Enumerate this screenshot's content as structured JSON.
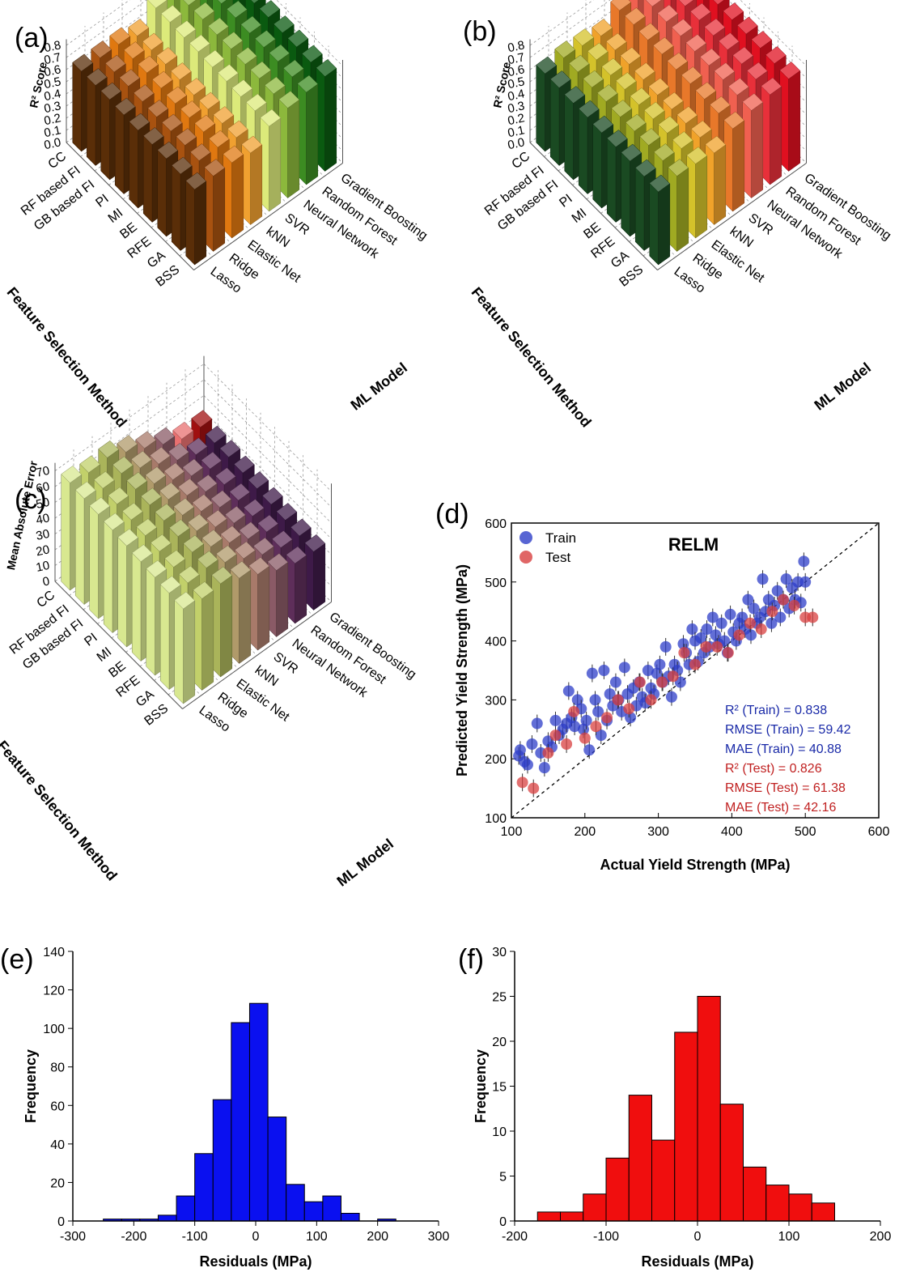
{
  "chart_data": [
    {
      "id": "a",
      "panel_label": "(a)",
      "type": "bar3d",
      "zlabel": "R² Score",
      "xlabel": "Feature Selection Method",
      "ylabel": "ML Model",
      "zticks": [
        "0.0",
        "0.1",
        "0.2",
        "0.3",
        "0.4",
        "0.5",
        "0.6",
        "0.7",
        "0.8"
      ],
      "zlim": [
        0,
        0.85
      ],
      "feature_methods": [
        "CC",
        "RF based FI",
        "GB based FI",
        "PI",
        "MI",
        "BE",
        "RFE",
        "GA",
        "BSS"
      ],
      "ml_models": [
        "Lasso",
        "Ridge",
        "Elastic Net",
        "kNN",
        "SVR",
        "Neural Network",
        "Random Forest",
        "Gradient Boosting"
      ],
      "series_colors": [
        "#5a2e08",
        "#a85210",
        "#e07810",
        "#f0a030",
        "#dcea7a",
        "#8cb83c",
        "#3c8c22",
        "#0a5a10"
      ],
      "highlight": {
        "model": 6,
        "method": 0,
        "colors": [
          "#f070c8",
          "#8c0850"
        ]
      },
      "values": [
        [
          0.66,
          0.66,
          0.66,
          0.65,
          0.64,
          0.64,
          0.64,
          0.63,
          0.62
        ],
        [
          0.66,
          0.66,
          0.66,
          0.65,
          0.64,
          0.64,
          0.64,
          0.63,
          0.62
        ],
        [
          0.66,
          0.66,
          0.66,
          0.65,
          0.64,
          0.64,
          0.64,
          0.63,
          0.62
        ],
        [
          0.62,
          0.62,
          0.62,
          0.61,
          0.6,
          0.6,
          0.6,
          0.6,
          0.59
        ],
        [
          0.74,
          0.74,
          0.73,
          0.73,
          0.72,
          0.72,
          0.71,
          0.71,
          0.7
        ],
        [
          0.78,
          0.77,
          0.77,
          0.76,
          0.76,
          0.75,
          0.75,
          0.74,
          0.74
        ],
        [
          0.8,
          0.79,
          0.79,
          0.79,
          0.78,
          0.78,
          0.78,
          0.77,
          0.76
        ],
        [
          0.82,
          0.81,
          0.81,
          0.8,
          0.8,
          0.79,
          0.79,
          0.78,
          0.78
        ]
      ]
    },
    {
      "id": "b",
      "panel_label": "(b)",
      "type": "bar3d",
      "zlabel": "R² Score",
      "xlabel": "Feature Selection Method",
      "ylabel": "ML Model",
      "zticks": [
        "0.0",
        "0.1",
        "0.2",
        "0.3",
        "0.4",
        "0.5",
        "0.6",
        "0.7",
        "0.8"
      ],
      "zlim": [
        0,
        0.85
      ],
      "feature_methods": [
        "CC",
        "RF based FI",
        "GB based FI",
        "PI",
        "MI",
        "BE",
        "RFE",
        "GA",
        "BSS"
      ],
      "ml_models": [
        "Lasso",
        "Ridge",
        "Elastic Net",
        "kNN",
        "SVR",
        "Neural Network",
        "Random Forest",
        "Gradient Boosting"
      ],
      "series_colors": [
        "#1a4a22",
        "#a0aa22",
        "#d4c22a",
        "#f0a22a",
        "#e8782a",
        "#f06050",
        "#e8303a",
        "#e01020"
      ],
      "highlight": {
        "model": 6,
        "method": 0,
        "colors": [
          "#60b8f0",
          "#1020d0"
        ]
      },
      "values": [
        [
          0.64,
          0.64,
          0.63,
          0.63,
          0.62,
          0.62,
          0.62,
          0.61,
          0.6
        ],
        [
          0.66,
          0.66,
          0.65,
          0.65,
          0.64,
          0.64,
          0.64,
          0.63,
          0.62
        ],
        [
          0.65,
          0.65,
          0.64,
          0.64,
          0.63,
          0.63,
          0.63,
          0.62,
          0.61
        ],
        [
          0.62,
          0.62,
          0.62,
          0.61,
          0.6,
          0.6,
          0.6,
          0.6,
          0.59
        ],
        [
          0.72,
          0.72,
          0.71,
          0.71,
          0.7,
          0.7,
          0.69,
          0.69,
          0.68
        ],
        [
          0.76,
          0.76,
          0.75,
          0.75,
          0.74,
          0.74,
          0.74,
          0.73,
          0.72
        ],
        [
          0.78,
          0.78,
          0.77,
          0.77,
          0.76,
          0.76,
          0.76,
          0.75,
          0.74
        ],
        [
          0.8,
          0.8,
          0.79,
          0.79,
          0.78,
          0.78,
          0.78,
          0.77,
          0.76
        ]
      ]
    },
    {
      "id": "c",
      "panel_label": "(c)",
      "type": "bar3d",
      "zlabel": "Mean Absolute Error",
      "xlabel": "Feature Selection Method",
      "ylabel": "ML Model",
      "zticks": [
        "0",
        "10",
        "20",
        "30",
        "40",
        "50",
        "60",
        "70"
      ],
      "zlim": [
        0,
        75
      ],
      "feature_methods": [
        "CC",
        "RF based FI",
        "GB based FI",
        "PI",
        "MI",
        "BE",
        "RFE",
        "GA",
        "BSS"
      ],
      "ml_models": [
        "Lasso",
        "Ridge",
        "Elastic Net",
        "kNN",
        "SVR",
        "Neural Network",
        "Random Forest",
        "Gradient Boosting"
      ],
      "series_colors": [
        "#d8e890",
        "#c2d06a",
        "#aab45a",
        "#b09a6a",
        "#a87a6a",
        "#8a5a66",
        "#5e2e5a",
        "#3e1a48"
      ],
      "highlight": {
        "model": 6,
        "method": 0,
        "colors": [
          "#e87070",
          "#a01010"
        ]
      },
      "values": [
        [
          68,
          67,
          66,
          65,
          64,
          63,
          62,
          61,
          60
        ],
        [
          66,
          65,
          64,
          63,
          62,
          61,
          60,
          59,
          58
        ],
        [
          67,
          66,
          65,
          64,
          63,
          62,
          61,
          60,
          59
        ],
        [
          62,
          61,
          60,
          59,
          58,
          57,
          56,
          55,
          54
        ],
        [
          56,
          55,
          54,
          53,
          52,
          51,
          50,
          49,
          48
        ],
        [
          50,
          49,
          48,
          47,
          46,
          45,
          44,
          43,
          42
        ],
        [
          45,
          44,
          44,
          43,
          42,
          41,
          40,
          39,
          38
        ],
        [
          44,
          43,
          43,
          42,
          41,
          40,
          39,
          38,
          37
        ]
      ]
    },
    {
      "id": "d",
      "panel_label": "(d)",
      "type": "scatter",
      "title": "RELM",
      "xlabel": "Actual Yield Strength (MPa)",
      "ylabel": "Predicted Yield Strength (MPa)",
      "xlim": [
        100,
        600
      ],
      "ylim": [
        100,
        600
      ],
      "xticks": [
        "100",
        "200",
        "300",
        "400",
        "500",
        "600"
      ],
      "yticks": [
        "100",
        "200",
        "300",
        "400",
        "500",
        "600"
      ],
      "legend": {
        "placement": "top-left",
        "entries": [
          "Train",
          "Test"
        ]
      },
      "annotations": {
        "train": [
          "R² (Train) = 0.838",
          "RMSE (Train) = 59.42",
          "MAE (Train) = 40.88"
        ],
        "test": [
          "R² (Test) = 0.826",
          "RMSE (Test) = 61.38",
          "MAE (Test) = 42.16"
        ]
      },
      "colors": {
        "train": "#2e3ec8",
        "test": "#d84040",
        "train_text": "#1a2aa8",
        "test_text": "#c02020"
      },
      "series": [
        {
          "name": "Train",
          "x": [
            110,
            112,
            118,
            122,
            128,
            135,
            140,
            145,
            150,
            155,
            160,
            165,
            170,
            175,
            178,
            182,
            186,
            190,
            195,
            198,
            202,
            206,
            210,
            214,
            218,
            222,
            226,
            230,
            234,
            238,
            242,
            246,
            250,
            254,
            258,
            262,
            266,
            270,
            274,
            278,
            282,
            286,
            290,
            294,
            298,
            302,
            306,
            310,
            314,
            318,
            322,
            326,
            330,
            334,
            338,
            342,
            346,
            350,
            354,
            358,
            362,
            366,
            370,
            374,
            378,
            382,
            386,
            390,
            394,
            398,
            402,
            406,
            410,
            414,
            418,
            422,
            426,
            430,
            434,
            438,
            442,
            446,
            450,
            454,
            458,
            462,
            466,
            470,
            474,
            478,
            482,
            486,
            490,
            494,
            498,
            500
          ],
          "y": [
            205,
            215,
            195,
            190,
            225,
            260,
            210,
            185,
            230,
            220,
            265,
            240,
            250,
            260,
            315,
            270,
            255,
            300,
            285,
            250,
            265,
            215,
            345,
            300,
            280,
            240,
            350,
            265,
            310,
            290,
            330,
            300,
            280,
            355,
            310,
            270,
            320,
            290,
            330,
            305,
            295,
            350,
            320,
            310,
            345,
            360,
            330,
            390,
            340,
            305,
            360,
            350,
            330,
            395,
            380,
            360,
            420,
            400,
            365,
            405,
            380,
            420,
            390,
            440,
            410,
            395,
            430,
            400,
            380,
            445,
            415,
            400,
            430,
            440,
            420,
            470,
            410,
            455,
            430,
            440,
            505,
            450,
            470,
            430,
            460,
            485,
            440,
            470,
            505,
            455,
            490,
            470,
            500,
            465,
            535,
            500
          ]
        },
        {
          "name": "Test",
          "x": [
            115,
            130,
            150,
            160,
            175,
            185,
            200,
            215,
            230,
            245,
            260,
            275,
            290,
            305,
            320,
            335,
            350,
            365,
            380,
            395,
            410,
            425,
            440,
            455,
            470,
            485,
            500,
            510
          ],
          "y": [
            160,
            150,
            210,
            240,
            225,
            280,
            235,
            255,
            270,
            300,
            285,
            330,
            300,
            330,
            340,
            380,
            360,
            390,
            390,
            380,
            410,
            430,
            420,
            450,
            470,
            460,
            440,
            440
          ]
        }
      ]
    },
    {
      "id": "e",
      "panel_label": "(e)",
      "type": "bar",
      "subtype": "histogram",
      "xlabel": "Residuals (MPa)",
      "ylabel": "Frequency",
      "xlim": [
        -300,
        300
      ],
      "ylim": [
        0,
        140
      ],
      "xticks": [
        "-300",
        "-200",
        "-100",
        "0",
        "100",
        "200",
        "300"
      ],
      "yticks": [
        "0",
        "20",
        "40",
        "60",
        "80",
        "100",
        "120",
        "140"
      ],
      "bin_edges": [
        -250,
        -220,
        -190,
        -160,
        -130,
        -100,
        -70,
        -40,
        -10,
        20,
        50,
        80,
        110,
        140,
        170,
        200,
        230,
        250
      ],
      "values": [
        1,
        1,
        1,
        3,
        13,
        35,
        63,
        103,
        113,
        54,
        19,
        10,
        13,
        4,
        0,
        1,
        0
      ],
      "color": "#0a10f0"
    },
    {
      "id": "f",
      "panel_label": "(f)",
      "type": "bar",
      "subtype": "histogram",
      "xlabel": "Residuals (MPa)",
      "ylabel": "Frequency",
      "xlim": [
        -200,
        200
      ],
      "ylim": [
        0,
        30
      ],
      "xticks": [
        "-200",
        "-100",
        "0",
        "100",
        "200"
      ],
      "yticks": [
        "0",
        "5",
        "10",
        "15",
        "20",
        "25",
        "30"
      ],
      "bin_edges": [
        -175,
        -150,
        -125,
        -100,
        -75,
        -50,
        -25,
        0,
        25,
        50,
        75,
        100,
        125,
        150
      ],
      "values": [
        1,
        1,
        3,
        7,
        14,
        9,
        21,
        25,
        13,
        6,
        4,
        3,
        2
      ],
      "color": "#f00e0e"
    }
  ]
}
